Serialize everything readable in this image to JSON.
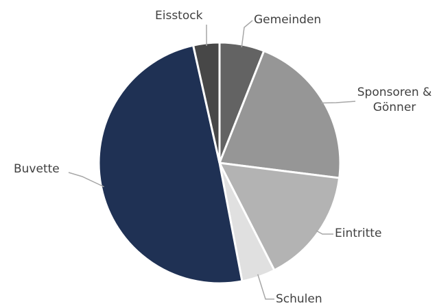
{
  "chart_data": {
    "type": "pie",
    "categories": [
      "Gemeinden",
      "Sponsoren & Gönner",
      "Eintritte",
      "Schulen",
      "Buvette",
      "Eisstock"
    ],
    "values": [
      6,
      21,
      15.5,
      4.5,
      49.5,
      3.5
    ],
    "colors": [
      "#636363",
      "#969696",
      "#b3b3b3",
      "#e0e0e0",
      "#1f3154",
      "#474747"
    ]
  }
}
